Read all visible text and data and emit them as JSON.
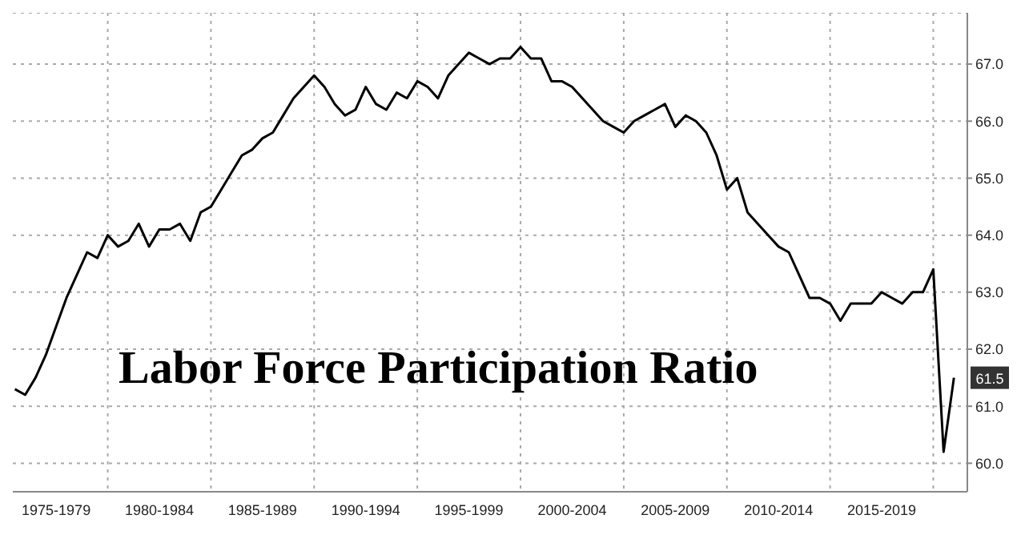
{
  "chart_data": {
    "type": "line",
    "title": "Labor Force Participation Ratio",
    "categories": [
      null,
      null,
      null,
      null,
      "1975-1979",
      null,
      null,
      null,
      null,
      null,
      null,
      null,
      null,
      null,
      "1980-1984",
      null,
      null,
      null,
      null,
      null,
      null,
      null,
      null,
      null,
      "1985-1989",
      null,
      null,
      null,
      null,
      null,
      null,
      null,
      null,
      null,
      "1990-1994",
      null,
      null,
      null,
      null,
      null,
      null,
      null,
      null,
      null,
      "1995-1999",
      null,
      null,
      null,
      null,
      null,
      null,
      null,
      null,
      null,
      "2000-2004",
      null,
      null,
      null,
      null,
      null,
      null,
      null,
      null,
      null,
      "2005-2009",
      null,
      null,
      null,
      null,
      null,
      null,
      null,
      null,
      null,
      "2010-2014",
      null,
      null,
      null,
      null,
      null,
      null,
      null,
      null,
      null,
      "2015-2019",
      null,
      null,
      null,
      null,
      null,
      null,
      null
    ],
    "series": [
      {
        "color": "#000000",
        "values": [
          61.3,
          61.2,
          61.5,
          61.9,
          62.4,
          62.9,
          63.3,
          63.7,
          63.6,
          64.0,
          63.8,
          63.9,
          64.2,
          63.8,
          64.1,
          64.1,
          64.2,
          63.9,
          64.4,
          64.5,
          64.8,
          65.1,
          65.4,
          65.5,
          65.7,
          65.8,
          66.1,
          66.4,
          66.6,
          66.8,
          66.6,
          66.3,
          66.1,
          66.2,
          66.6,
          66.3,
          66.2,
          66.5,
          66.4,
          66.7,
          66.6,
          66.4,
          66.8,
          67.0,
          67.2,
          67.1,
          67.0,
          67.1,
          67.1,
          67.3,
          67.1,
          67.1,
          66.7,
          66.7,
          66.6,
          66.4,
          66.2,
          66.0,
          65.9,
          65.8,
          66.0,
          66.1,
          66.2,
          66.3,
          65.9,
          66.1,
          66.0,
          65.8,
          65.4,
          64.8,
          65.0,
          64.4,
          64.2,
          64.0,
          63.8,
          63.7,
          63.3,
          62.9,
          62.9,
          62.8,
          62.5,
          62.8,
          62.8,
          62.8,
          63.0,
          62.9,
          62.8,
          63.0,
          63.0,
          63.4,
          60.2,
          61.5
        ]
      }
    ],
    "ylim": [
      59.5,
      67.9
    ],
    "yticks": [
      {
        "value": 60,
        "label": "60.0"
      },
      {
        "value": 61,
        "label": "61.0"
      },
      {
        "value": 62,
        "label": "62.0"
      },
      {
        "value": 63,
        "label": "63.0"
      },
      {
        "value": 64,
        "label": "64.0"
      },
      {
        "value": 65,
        "label": "65.0"
      },
      {
        "value": 66,
        "label": "66.0"
      },
      {
        "value": 67,
        "label": "67.0"
      }
    ],
    "annotations": [
      {
        "text": "61.5",
        "y": 61.5
      }
    ],
    "grid": true,
    "marker": "none",
    "line_style": "solid"
  }
}
